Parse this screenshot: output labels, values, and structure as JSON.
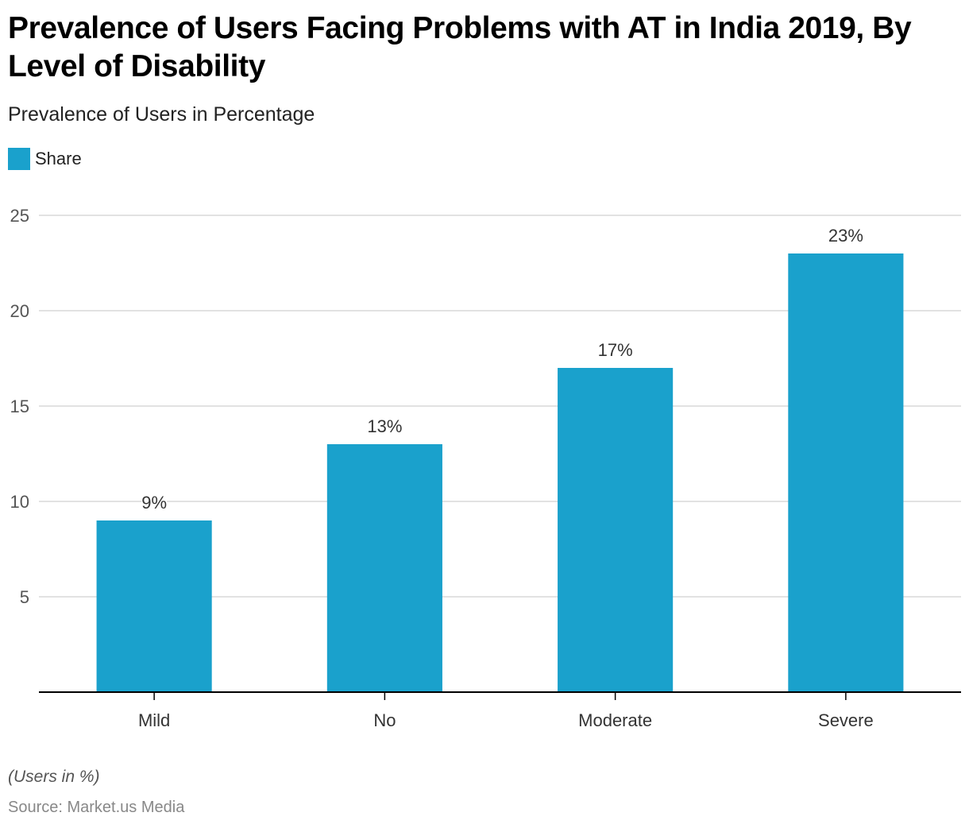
{
  "title": "Prevalence of Users Facing Problems with AT in India 2019, By Level of Disability",
  "subtitle": "Prevalence of Users in Percentage",
  "legend": [
    {
      "label": "Share",
      "color": "#1aa1cc"
    }
  ],
  "note": "(Users in %)",
  "source": "Source: Market.us Media",
  "colors": {
    "bar": "#1aa1cc",
    "grid": "#d9d9d9",
    "axis": "#000000",
    "tick_label": "#555555",
    "data_label": "#333333"
  },
  "chart_data": {
    "type": "bar",
    "title": "Prevalence of Users Facing Problems with AT in India 2019, By Level of Disability",
    "subtitle": "Prevalence of Users in Percentage",
    "xlabel": "",
    "ylabel": "",
    "categories": [
      "Mild",
      "No",
      "Moderate",
      "Severe"
    ],
    "series": [
      {
        "name": "Share",
        "values": [
          9,
          13,
          17,
          23
        ]
      }
    ],
    "data_labels": [
      "9%",
      "13%",
      "17%",
      "23%"
    ],
    "ylim": [
      0,
      25
    ],
    "yticks": [
      5,
      10,
      15,
      20,
      25
    ],
    "grid": true,
    "legend_position": "top-left"
  }
}
